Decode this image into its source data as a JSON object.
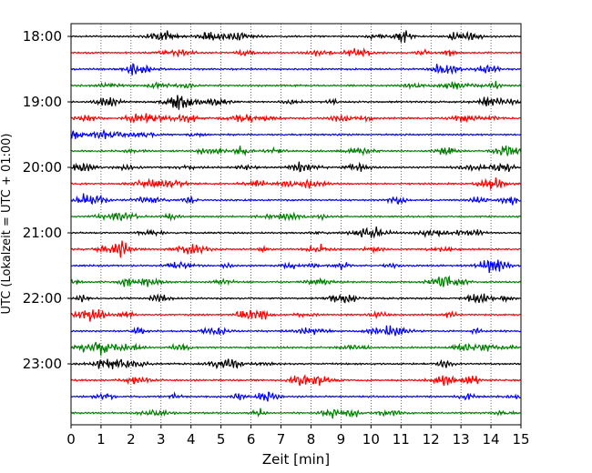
{
  "chart_data": {
    "type": "line",
    "title": "",
    "xlabel": "Zeit  [min]",
    "ylabel": "UTC (Lokalzeit = UTC + 01:00)",
    "xlim": [
      0,
      15
    ],
    "x_ticks": [
      "0",
      "1",
      "2",
      "3",
      "4",
      "5",
      "6",
      "7",
      "8",
      "9",
      "10",
      "11",
      "12",
      "13",
      "14",
      "15"
    ],
    "y_ticks": [
      "18:00",
      "19:00",
      "20:00",
      "21:00",
      "22:00",
      "23:00"
    ],
    "grid": "vertical dotted at each minute",
    "trace_interval_min": 15,
    "start_time": "18:00",
    "colors_cycle": [
      "#000000",
      "#ff0000",
      "#0000ff",
      "#008000"
    ],
    "traces": [
      {
        "start": "18:00",
        "color": "#000000"
      },
      {
        "start": "18:15",
        "color": "#ff0000"
      },
      {
        "start": "18:30",
        "color": "#0000ff"
      },
      {
        "start": "18:45",
        "color": "#008000"
      },
      {
        "start": "19:00",
        "color": "#000000"
      },
      {
        "start": "19:15",
        "color": "#ff0000"
      },
      {
        "start": "19:30",
        "color": "#0000ff"
      },
      {
        "start": "19:45",
        "color": "#008000"
      },
      {
        "start": "20:00",
        "color": "#000000"
      },
      {
        "start": "20:15",
        "color": "#ff0000"
      },
      {
        "start": "20:30",
        "color": "#0000ff"
      },
      {
        "start": "20:45",
        "color": "#008000"
      },
      {
        "start": "21:00",
        "color": "#000000"
      },
      {
        "start": "21:15",
        "color": "#ff0000"
      },
      {
        "start": "21:30",
        "color": "#0000ff"
      },
      {
        "start": "21:45",
        "color": "#008000"
      },
      {
        "start": "22:00",
        "color": "#000000"
      },
      {
        "start": "22:15",
        "color": "#ff0000"
      },
      {
        "start": "22:30",
        "color": "#0000ff"
      },
      {
        "start": "22:45",
        "color": "#008000"
      },
      {
        "start": "23:00",
        "color": "#000000"
      },
      {
        "start": "23:15",
        "color": "#ff0000"
      },
      {
        "start": "23:30",
        "color": "#0000ff"
      },
      {
        "start": "23:45",
        "color": "#008000"
      }
    ]
  }
}
